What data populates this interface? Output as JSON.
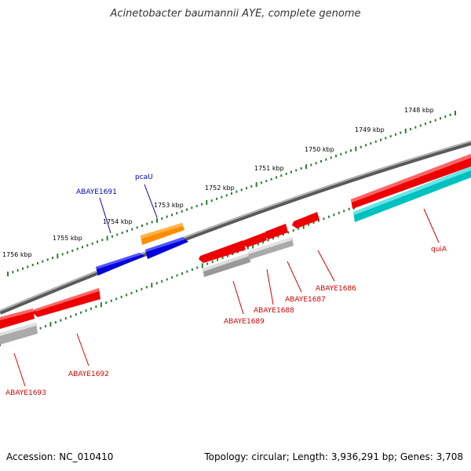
{
  "title": "Acinetobacter baumannii AYE, complete genome",
  "footer": {
    "accession": "Accession: NC_010410",
    "topology": "Topology: circular; Length: 3,936,291 bp; Genes: 3,708"
  },
  "scale": {
    "ticks": [
      {
        "label": "1748 kbp"
      },
      {
        "label": "1749 kbp"
      },
      {
        "label": "1750 kbp"
      },
      {
        "label": "1751 kbp"
      },
      {
        "label": "1752 kbp"
      },
      {
        "label": "1753 kbp"
      },
      {
        "label": "1754 kbp"
      },
      {
        "label": "1755 kbp"
      },
      {
        "label": "1756 kbp"
      }
    ]
  },
  "colors": {
    "backbone": "#888888",
    "red_gene": "#ee0000",
    "blue_gene": "#0000dd",
    "orange_gene": "#ff8c00",
    "cyan_gene": "#00c0c0",
    "grey_gene": "#aaaaaa",
    "tick_green": "#2e7d32",
    "label_red": "#dd0000",
    "label_blue": "#0000cc"
  },
  "genes": [
    {
      "name": "ABAYE1691",
      "strand": "forward",
      "color": "blue"
    },
    {
      "name": "pcaU",
      "strand": "forward",
      "color": "blue"
    },
    {
      "name": "ABAYE1692",
      "strand": "reverse",
      "color": "red"
    },
    {
      "name": "ABAYE1693",
      "strand": "reverse",
      "color": "red"
    },
    {
      "name": "ABAYE1689",
      "strand": "reverse",
      "color": "red"
    },
    {
      "name": "ABAYE1688",
      "strand": "reverse",
      "color": "red"
    },
    {
      "name": "ABAYE1687",
      "strand": "reverse",
      "color": "red"
    },
    {
      "name": "ABAYE1686",
      "strand": "reverse",
      "color": "red"
    },
    {
      "name": "quiA",
      "strand": "reverse",
      "color": "red"
    }
  ]
}
